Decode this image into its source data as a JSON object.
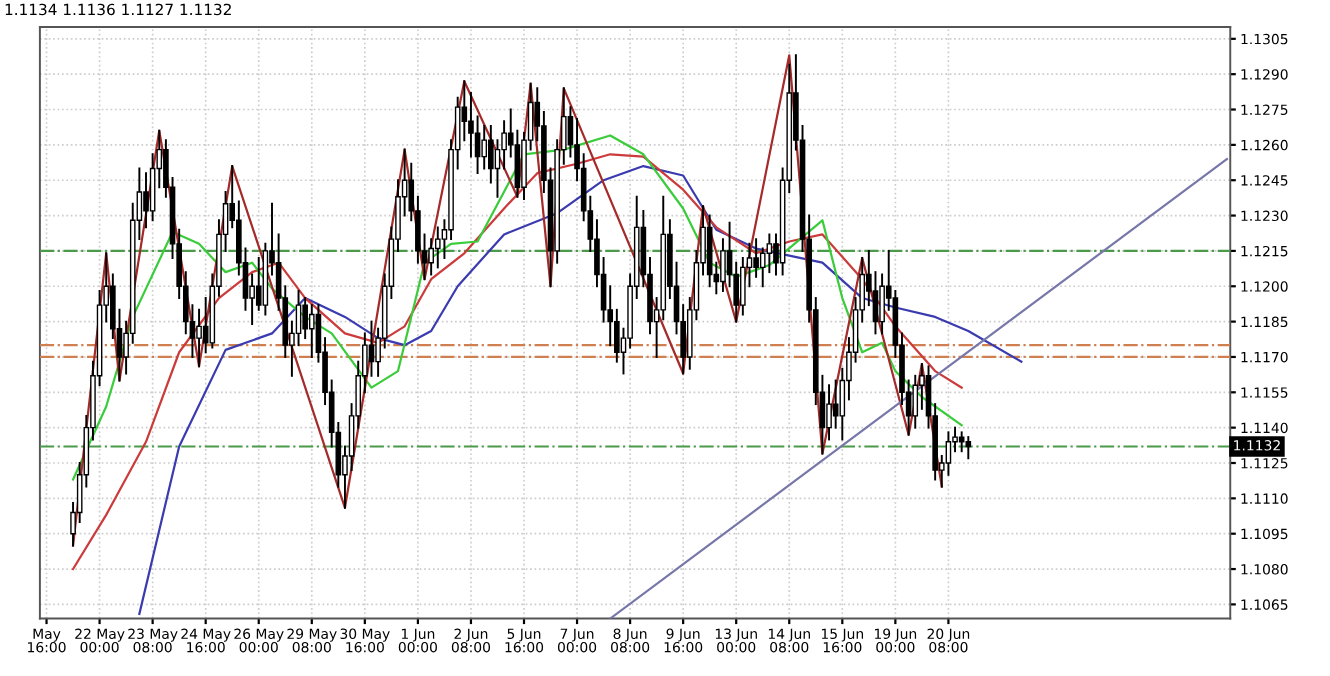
{
  "chart_data": {
    "type": "candlestick",
    "title": "1.1134 1.1136 1.1127 1.1132",
    "color": "#000000",
    "categories": [
      "May 16:00",
      null,
      null,
      null,
      null,
      null,
      null,
      null,
      "22 May 00:00",
      null,
      null,
      null,
      null,
      null,
      null,
      null,
      "23 May 08:00",
      null,
      null,
      null,
      null,
      null,
      null,
      null,
      "24 May 16:00",
      null,
      null,
      null,
      null,
      null,
      null,
      null,
      "26 May 00:00",
      null,
      null,
      null,
      null,
      null,
      null,
      null,
      "29 May 08:00",
      null,
      null,
      null,
      null,
      null,
      null,
      null,
      "30 May 16:00",
      null,
      null,
      null,
      null,
      null,
      null,
      null,
      "1 Jun 00:00",
      null,
      null,
      null,
      null,
      null,
      null,
      null,
      "2 Jun 08:00",
      null,
      null,
      null,
      null,
      null,
      null,
      null,
      "5 Jun 16:00",
      null,
      null,
      null,
      null,
      null,
      null,
      null,
      "7 Jun 00:00",
      null,
      null,
      null,
      null,
      null,
      null,
      null,
      "8 Jun 08:00",
      null,
      null,
      null,
      null,
      null,
      null,
      null,
      "9 Jun 16:00",
      null,
      null,
      null,
      null,
      null,
      null,
      null,
      "13 Jun 00:00",
      null,
      null,
      null,
      null,
      null,
      null,
      null,
      "14 Jun 08:00",
      null,
      null,
      null,
      null,
      null,
      null,
      null,
      "15 Jun 16:00",
      null,
      null,
      null,
      null,
      null,
      null,
      null,
      "19 Jun 00:00",
      null,
      null,
      null,
      null,
      null,
      null,
      null,
      "20 Jun 08:00",
      null,
      null,
      null,
      null,
      null,
      null,
      null,
      null,
      null,
      null,
      null,
      null,
      null,
      null,
      null,
      null,
      null,
      null,
      null,
      null,
      null,
      null,
      null,
      null,
      null,
      null,
      null,
      null,
      null,
      null,
      null,
      null,
      null,
      null,
      null,
      null,
      null,
      null,
      null,
      null,
      null,
      null
    ],
    "ohlc": [
      null,
      null,
      null,
      null,
      [
        1.1095,
        1.1108,
        1.109,
        1.1104
      ],
      [
        1.1104,
        1.1125,
        1.11,
        1.112
      ],
      [
        1.112,
        1.1145,
        1.1115,
        1.114
      ],
      [
        1.114,
        1.1168,
        1.1135,
        1.1162
      ],
      [
        1.1162,
        1.1198,
        1.1158,
        1.1192
      ],
      [
        1.1192,
        1.1214,
        1.1185,
        1.12
      ],
      [
        1.12,
        1.1205,
        1.1178,
        1.1182
      ],
      [
        1.1182,
        1.119,
        1.116,
        1.117
      ],
      [
        1.117,
        1.1185,
        1.1163,
        1.118
      ],
      [
        1.118,
        1.1235,
        1.1176,
        1.1228
      ],
      [
        1.1228,
        1.125,
        1.122,
        1.124
      ],
      [
        1.124,
        1.1248,
        1.1225,
        1.1232
      ],
      [
        1.1232,
        1.1256,
        1.1228,
        1.125
      ],
      [
        1.125,
        1.1266,
        1.1242,
        1.1258
      ],
      [
        1.1258,
        1.1262,
        1.1238,
        1.1242
      ],
      [
        1.1242,
        1.1246,
        1.1212,
        1.1218
      ],
      [
        1.1218,
        1.1224,
        1.1195,
        1.12
      ],
      [
        1.12,
        1.1206,
        1.118,
        1.1185
      ],
      [
        1.1185,
        1.1192,
        1.117,
        1.1178
      ],
      [
        1.1178,
        1.119,
        1.1166,
        1.1183
      ],
      [
        1.1183,
        1.1195,
        1.1172,
        1.1176
      ],
      [
        1.1176,
        1.1205,
        1.1174,
        1.12
      ],
      [
        1.12,
        1.1228,
        1.1196,
        1.1222
      ],
      [
        1.1222,
        1.124,
        1.1215,
        1.1235
      ],
      [
        1.1235,
        1.1251,
        1.1225,
        1.1228
      ],
      [
        1.1228,
        1.1236,
        1.1205,
        1.121
      ],
      [
        1.121,
        1.1216,
        1.119,
        1.1195
      ],
      [
        1.1195,
        1.1205,
        1.1184,
        1.12
      ],
      [
        1.12,
        1.1212,
        1.119,
        1.1192
      ],
      [
        1.1192,
        1.1218,
        1.1188,
        1.1215
      ],
      [
        1.1215,
        1.1235,
        1.1205,
        1.121
      ],
      [
        1.121,
        1.1222,
        1.119,
        1.1195
      ],
      [
        1.1195,
        1.12,
        1.117,
        1.1175
      ],
      [
        1.1175,
        1.1185,
        1.1162,
        1.118
      ],
      [
        1.118,
        1.1198,
        1.1175,
        1.1192
      ],
      [
        1.1192,
        1.1195,
        1.1178,
        1.1182
      ],
      [
        1.1182,
        1.1192,
        1.117,
        1.1188
      ],
      [
        1.1188,
        1.1192,
        1.1168,
        1.1172
      ],
      [
        1.1172,
        1.1178,
        1.115,
        1.1155
      ],
      [
        1.1155,
        1.116,
        1.1132,
        1.1138
      ],
      [
        1.1138,
        1.1142,
        1.1115,
        1.112
      ],
      [
        1.112,
        1.1132,
        1.1106,
        1.1128
      ],
      [
        1.1128,
        1.115,
        1.1122,
        1.1145
      ],
      [
        1.1145,
        1.1168,
        1.114,
        1.1162
      ],
      [
        1.1162,
        1.118,
        1.1155,
        1.1175
      ],
      [
        1.1175,
        1.1185,
        1.1162,
        1.1168
      ],
      [
        1.1168,
        1.1182,
        1.1162,
        1.1178
      ],
      [
        1.1178,
        1.1205,
        1.1174,
        1.12
      ],
      [
        1.12,
        1.1225,
        1.1195,
        1.122
      ],
      [
        1.122,
        1.1245,
        1.1215,
        1.1238
      ],
      [
        1.1238,
        1.1258,
        1.123,
        1.1245
      ],
      [
        1.1245,
        1.1252,
        1.1228,
        1.1232
      ],
      [
        1.1232,
        1.1238,
        1.121,
        1.1215
      ],
      [
        1.1215,
        1.1222,
        1.1203,
        1.121
      ],
      [
        1.121,
        1.122,
        1.1205,
        1.1216
      ],
      [
        1.1216,
        1.1225,
        1.1208,
        1.122
      ],
      [
        1.122,
        1.1228,
        1.1212,
        1.1224
      ],
      [
        1.1224,
        1.1262,
        1.122,
        1.1258
      ],
      [
        1.1258,
        1.128,
        1.125,
        1.1276
      ],
      [
        1.1276,
        1.1287,
        1.1262,
        1.127
      ],
      [
        1.127,
        1.1282,
        1.1255,
        1.1265
      ],
      [
        1.1265,
        1.1272,
        1.1248,
        1.1255
      ],
      [
        1.1255,
        1.1268,
        1.125,
        1.1262
      ],
      [
        1.1262,
        1.1268,
        1.1244,
        1.125
      ],
      [
        1.125,
        1.1262,
        1.1238,
        1.1258
      ],
      [
        1.1258,
        1.127,
        1.125,
        1.1265
      ],
      [
        1.1265,
        1.1275,
        1.1255,
        1.126
      ],
      [
        1.126,
        1.1266,
        1.1238,
        1.1242
      ],
      [
        1.1242,
        1.1265,
        1.1237,
        1.1262
      ],
      [
        1.1262,
        1.1286,
        1.1258,
        1.1278
      ],
      [
        1.1278,
        1.1284,
        1.1262,
        1.1268
      ],
      [
        1.1268,
        1.1274,
        1.124,
        1.1245
      ],
      [
        1.1245,
        1.125,
        1.12,
        1.1215
      ],
      [
        1.1215,
        1.1262,
        1.121,
        1.1258
      ],
      [
        1.1258,
        1.1284,
        1.1252,
        1.1272
      ],
      [
        1.1272,
        1.1276,
        1.1255,
        1.126
      ],
      [
        1.126,
        1.1271,
        1.1245,
        1.125
      ],
      [
        1.125,
        1.1256,
        1.1228,
        1.1232
      ],
      [
        1.1232,
        1.1238,
        1.1215,
        1.122
      ],
      [
        1.122,
        1.1228,
        1.12,
        1.1205
      ],
      [
        1.1205,
        1.1212,
        1.1185,
        1.119
      ],
      [
        1.119,
        1.12,
        1.1175,
        1.1185
      ],
      [
        1.1185,
        1.119,
        1.1168,
        1.1172
      ],
      [
        1.1172,
        1.1182,
        1.1163,
        1.1178
      ],
      [
        1.1178,
        1.1205,
        1.1174,
        1.12
      ],
      [
        1.12,
        1.1238,
        1.1195,
        1.1225
      ],
      [
        1.1225,
        1.1232,
        1.12,
        1.1205
      ],
      [
        1.1205,
        1.1212,
        1.118,
        1.1185
      ],
      [
        1.1185,
        1.1195,
        1.117,
        1.119
      ],
      [
        1.119,
        1.1238,
        1.1186,
        1.1222
      ],
      [
        1.1222,
        1.1228,
        1.1195,
        1.12
      ],
      [
        1.12,
        1.121,
        1.118,
        1.1185
      ],
      [
        1.1185,
        1.1192,
        1.1163,
        1.117
      ],
      [
        1.117,
        1.1195,
        1.1165,
        1.119
      ],
      [
        1.119,
        1.1215,
        1.1186,
        1.121
      ],
      [
        1.121,
        1.1234,
        1.1205,
        1.1225
      ],
      [
        1.1225,
        1.123,
        1.12,
        1.1205
      ],
      [
        1.1205,
        1.121,
        1.1197,
        1.1202
      ],
      [
        1.1202,
        1.122,
        1.1198,
        1.1215
      ],
      [
        1.1215,
        1.1227,
        1.12,
        1.1205
      ],
      [
        1.1205,
        1.121,
        1.1185,
        1.1192
      ],
      [
        1.1192,
        1.1212,
        1.1188,
        1.1208
      ],
      [
        1.1208,
        1.1218,
        1.12,
        1.1212
      ],
      [
        1.1212,
        1.122,
        1.1204,
        1.1208
      ],
      [
        1.1208,
        1.1216,
        1.12,
        1.1214
      ],
      [
        1.1214,
        1.1222,
        1.1206,
        1.1218
      ],
      [
        1.1218,
        1.1222,
        1.1205,
        1.121
      ],
      [
        1.121,
        1.125,
        1.1205,
        1.1245
      ],
      [
        1.1245,
        1.1294,
        1.124,
        1.1282
      ],
      [
        1.1282,
        1.1298,
        1.1258,
        1.1262
      ],
      [
        1.1262,
        1.1268,
        1.1215,
        1.122
      ],
      [
        1.122,
        1.123,
        1.1185,
        1.119
      ],
      [
        1.119,
        1.1195,
        1.115,
        1.1155
      ],
      [
        1.1155,
        1.1162,
        1.1129,
        1.114
      ],
      [
        1.114,
        1.1158,
        1.1135,
        1.115
      ],
      [
        1.115,
        1.116,
        1.114,
        1.1145
      ],
      [
        1.1145,
        1.1165,
        1.1135,
        1.116
      ],
      [
        1.116,
        1.1178,
        1.1152,
        1.1172
      ],
      [
        1.1172,
        1.1195,
        1.1168,
        1.119
      ],
      [
        1.119,
        1.1212,
        1.1185,
        1.1205
      ],
      [
        1.1205,
        1.1215,
        1.1192,
        1.1198
      ],
      [
        1.1198,
        1.1206,
        1.118,
        1.1185
      ],
      [
        1.1185,
        1.1205,
        1.118,
        1.12
      ],
      [
        1.12,
        1.1215,
        1.119,
        1.1195
      ],
      [
        1.1195,
        1.1198,
        1.117,
        1.1175
      ],
      [
        1.1175,
        1.118,
        1.115,
        1.1155
      ],
      [
        1.1155,
        1.116,
        1.1137,
        1.1145
      ],
      [
        1.1145,
        1.1162,
        1.114,
        1.1158
      ],
      [
        1.1158,
        1.1167,
        1.1148,
        1.1162
      ],
      [
        1.1162,
        1.1166,
        1.114,
        1.1145
      ],
      [
        1.1145,
        1.115,
        1.1118,
        1.1122
      ],
      [
        1.1122,
        1.1128,
        1.1115,
        1.1125
      ],
      [
        1.1125,
        1.1138,
        1.112,
        1.1134
      ],
      [
        1.1134,
        1.114,
        1.113,
        1.1136
      ],
      [
        1.1136,
        1.1138,
        1.113,
        1.1134
      ],
      [
        1.1134,
        1.1136,
        1.1127,
        1.1132
      ],
      null,
      null,
      null,
      null,
      null,
      null,
      null,
      null,
      null,
      null,
      null,
      null,
      null,
      null,
      null,
      null,
      null,
      null,
      null,
      null,
      null,
      null,
      null,
      null,
      null,
      null,
      null,
      null,
      null,
      null,
      null,
      null,
      null,
      null,
      null,
      null,
      null,
      null,
      null
    ],
    "series": [
      {
        "type": "line",
        "color": "#3b3bb0",
        "values": [
          null,
          null,
          null,
          null,
          null,
          null,
          null,
          null,
          null,
          null,
          null,
          null,
          null,
          null,
          1.1061,
          null,
          null,
          null,
          null,
          null,
          1.1132,
          null,
          null,
          null,
          null,
          null,
          null,
          1.1173,
          null,
          null,
          null,
          null,
          null,
          null,
          1.118,
          null,
          null,
          null,
          null,
          1.1195,
          null,
          null,
          null,
          null,
          null,
          1.1187,
          null,
          null,
          null,
          null,
          1.1178,
          null,
          null,
          null,
          1.1175,
          null,
          null,
          null,
          1.1181,
          null,
          null,
          null,
          1.12,
          null,
          null,
          null,
          null,
          null,
          null,
          1.1222,
          null,
          null,
          null,
          null,
          null,
          null,
          null,
          1.1231,
          null,
          null,
          null,
          null,
          null,
          null,
          1.1245,
          null,
          null,
          null,
          null,
          null,
          1.1251,
          null,
          null,
          null,
          null,
          null,
          1.1247,
          null,
          null,
          null,
          null,
          1.1224,
          null,
          null,
          null,
          null,
          null,
          1.1216,
          null,
          null,
          null,
          null,
          1.1213,
          null,
          null,
          null,
          null,
          1.121,
          null,
          null,
          null,
          null,
          null,
          1.1195,
          null,
          null,
          null,
          null,
          1.1191,
          null,
          null,
          null,
          null,
          null,
          1.1187,
          null,
          null,
          null,
          null,
          1.1181,
          null,
          null,
          null,
          null,
          null,
          null,
          null,
          1.1168,
          null,
          null,
          null,
          null,
          null,
          null,
          null,
          null,
          null,
          null,
          null,
          null,
          null,
          null,
          null,
          null,
          null,
          null,
          null,
          null,
          null,
          null,
          null,
          null,
          null,
          null,
          null,
          null,
          null,
          null,
          null
        ]
      },
      {
        "type": "line",
        "color": "#cc3b3b",
        "values": [
          null,
          null,
          null,
          null,
          1.108,
          null,
          null,
          null,
          null,
          1.1103,
          null,
          null,
          null,
          null,
          null,
          1.1134,
          null,
          null,
          null,
          null,
          1.1172,
          null,
          null,
          null,
          null,
          null,
          1.1195,
          null,
          null,
          null,
          null,
          1.1206,
          null,
          null,
          null,
          1.121,
          null,
          null,
          null,
          1.1195,
          null,
          null,
          null,
          null,
          null,
          1.118,
          null,
          null,
          null,
          null,
          1.1176,
          null,
          null,
          null,
          1.1183,
          null,
          null,
          null,
          1.1203,
          null,
          null,
          null,
          null,
          1.1214,
          null,
          null,
          null,
          null,
          null,
          1.1233,
          null,
          null,
          null,
          null,
          1.1248,
          null,
          null,
          null,
          null,
          null,
          1.1252,
          null,
          null,
          null,
          null,
          1.1256,
          null,
          null,
          null,
          null,
          1.1255,
          null,
          null,
          null,
          null,
          null,
          1.1241,
          null,
          null,
          null,
          null,
          1.1225,
          null,
          null,
          null,
          null,
          null,
          1.1214,
          null,
          null,
          null,
          null,
          1.1219,
          null,
          null,
          null,
          null,
          1.1222,
          null,
          null,
          null,
          null,
          null,
          1.1203,
          null,
          null,
          null,
          null,
          1.1183,
          null,
          null,
          null,
          null,
          null,
          1.1164,
          null,
          null,
          null,
          1.1157,
          null,
          null,
          null,
          null,
          null,
          null,
          null,
          null,
          null,
          null,
          null,
          null,
          null,
          null,
          null,
          null,
          null,
          null,
          null,
          null,
          null,
          null,
          null,
          null,
          null,
          null,
          null,
          null,
          null,
          null,
          null,
          null,
          null,
          null,
          null,
          null,
          null,
          null,
          null,
          null
        ]
      },
      {
        "type": "line",
        "color": "#3bcc3b",
        "values": [
          null,
          null,
          null,
          null,
          1.1118,
          null,
          null,
          null,
          null,
          1.1149,
          null,
          null,
          null,
          1.1187,
          null,
          null,
          null,
          null,
          null,
          1.1223,
          null,
          null,
          null,
          1.1218,
          null,
          null,
          null,
          1.1206,
          null,
          null,
          null,
          1.121,
          null,
          null,
          1.1199,
          null,
          null,
          null,
          null,
          1.1187,
          null,
          null,
          null,
          1.118,
          null,
          null,
          null,
          null,
          null,
          1.1157,
          null,
          null,
          null,
          1.1164,
          null,
          null,
          null,
          1.121,
          null,
          null,
          null,
          1.1218,
          null,
          null,
          null,
          1.1219,
          null,
          null,
          null,
          null,
          null,
          null,
          1.1256,
          null,
          null,
          null,
          null,
          null,
          1.1258,
          null,
          null,
          null,
          null,
          null,
          null,
          1.1264,
          null,
          null,
          null,
          null,
          1.1256,
          null,
          null,
          null,
          null,
          null,
          1.1233,
          null,
          null,
          null,
          1.121,
          null,
          null,
          null,
          1.1204,
          null,
          null,
          null,
          null,
          1.1209,
          null,
          null,
          null,
          null,
          null,
          null,
          null,
          1.1228,
          null,
          null,
          1.1195,
          null,
          null,
          1.1172,
          null,
          null,
          1.1176,
          null,
          1.1164,
          null,
          null,
          null,
          1.1153,
          null,
          null,
          null,
          null,
          null,
          1.1141,
          null,
          null,
          null,
          null,
          null,
          null,
          null,
          null,
          null,
          null,
          null,
          null,
          null,
          null,
          null,
          null,
          null,
          null,
          null,
          null,
          null,
          null,
          null,
          null,
          null,
          null,
          null,
          null,
          null,
          null,
          null,
          null,
          null,
          null,
          null,
          null,
          null,
          null,
          null,
          null
        ]
      },
      {
        "type": "line",
        "color": "#a52a2a",
        "values": [
          null,
          null,
          null,
          null,
          1.109,
          null,
          null,
          null,
          null,
          1.1214,
          null,
          1.116,
          null,
          null,
          null,
          null,
          null,
          1.1266,
          null,
          null,
          null,
          null,
          null,
          1.1166,
          null,
          null,
          null,
          null,
          1.1251,
          null,
          null,
          null,
          null,
          null,
          null,
          null,
          null,
          null,
          null,
          null,
          null,
          null,
          null,
          null,
          null,
          1.1106,
          null,
          null,
          null,
          null,
          null,
          null,
          null,
          null,
          1.1258,
          null,
          null,
          1.1203,
          null,
          null,
          null,
          null,
          null,
          1.1287,
          null,
          null,
          null,
          null,
          null,
          null,
          null,
          1.1238,
          null,
          1.1286,
          null,
          null,
          1.12,
          null,
          1.1284,
          null,
          null,
          null,
          null,
          null,
          null,
          null,
          null,
          null,
          null,
          null,
          null,
          null,
          null,
          null,
          null,
          null,
          1.1163,
          null,
          null,
          1.1234,
          null,
          null,
          null,
          null,
          1.1185,
          null,
          null,
          null,
          null,
          null,
          null,
          null,
          1.1298,
          null,
          null,
          null,
          null,
          1.1129,
          null,
          null,
          null,
          null,
          null,
          1.1212,
          null,
          null,
          null,
          null,
          null,
          null,
          1.1137,
          null,
          1.1167,
          null,
          null,
          1.1115,
          null,
          null,
          null,
          null,
          null,
          null,
          null,
          null,
          null,
          null,
          null,
          null,
          null,
          null,
          null,
          null,
          null,
          null,
          null,
          null,
          null,
          null,
          null,
          null,
          null,
          null,
          null,
          null,
          null,
          null,
          null,
          null,
          null,
          null,
          null,
          null,
          null,
          null,
          null,
          null,
          null,
          null,
          null
        ]
      },
      {
        "type": "line",
        "color": "#7777aa",
        "values": [
          null,
          null,
          null,
          null,
          null,
          null,
          null,
          null,
          null,
          null,
          null,
          null,
          null,
          null,
          null,
          null,
          null,
          null,
          null,
          null,
          null,
          null,
          null,
          null,
          null,
          null,
          null,
          null,
          null,
          null,
          null,
          null,
          null,
          null,
          null,
          null,
          null,
          null,
          null,
          null,
          null,
          null,
          null,
          null,
          null,
          null,
          null,
          null,
          null,
          null,
          null,
          null,
          null,
          null,
          null,
          null,
          null,
          null,
          null,
          null,
          null,
          null,
          null,
          null,
          null,
          null,
          null,
          null,
          null,
          null,
          null,
          null,
          null,
          null,
          null,
          null,
          null,
          null,
          null,
          null,
          null,
          null,
          null,
          null,
          null,
          1.1059,
          null,
          null,
          null,
          null,
          null,
          null,
          null,
          null,
          null,
          null,
          null,
          null,
          null,
          null,
          null,
          null,
          null,
          null,
          null,
          null,
          null,
          null,
          null,
          null,
          null,
          null,
          null,
          null,
          null,
          null,
          null,
          null,
          null,
          null,
          null,
          null,
          null,
          null,
          null,
          null,
          null,
          null,
          null,
          null,
          null,
          null,
          null,
          null,
          null,
          null,
          null,
          null,
          null,
          null,
          null,
          null,
          null,
          null,
          null,
          null,
          null,
          null,
          null,
          null,
          null,
          null,
          null,
          null,
          null,
          null,
          null,
          null,
          null,
          null,
          null,
          null,
          null,
          null,
          null,
          null,
          null,
          null,
          null,
          null,
          null,
          null,
          null,
          null,
          null,
          null,
          null,
          null,
          1.1254
        ]
      }
    ],
    "ref_lines": [
      {
        "axis": "y",
        "value": 1.1215,
        "color": "#4a9a4a",
        "line_style": "dashdot"
      },
      {
        "axis": "y",
        "value": 1.1175,
        "color": "#d08050",
        "line_style": "dashdot"
      },
      {
        "axis": "y",
        "value": 1.117,
        "color": "#d08050",
        "line_style": "dashdot"
      },
      {
        "axis": "y",
        "value": 1.1132,
        "color": "#4a9a4a",
        "line_style": "dashdot",
        "label": "1.1132"
      }
    ],
    "ylim": [
      1.1059,
      1.131
    ],
    "yticks": [
      1.1305,
      {
        "value": 1.129,
        "label": "1.1290"
      },
      1.1275,
      {
        "value": 1.126,
        "label": "1.1260"
      },
      1.1245,
      {
        "value": 1.123,
        "label": "1.1230"
      },
      1.1215,
      {
        "value": 1.12,
        "label": "1.1200"
      },
      1.1185,
      {
        "value": 1.117,
        "label": "1.1170"
      },
      1.1155,
      {
        "value": 1.114,
        "label": "1.1140"
      },
      1.1125,
      {
        "value": 1.111,
        "label": "1.1110"
      },
      1.1095,
      {
        "value": 1.108,
        "label": "1.1080"
      },
      1.1065
    ],
    "grid": true
  }
}
